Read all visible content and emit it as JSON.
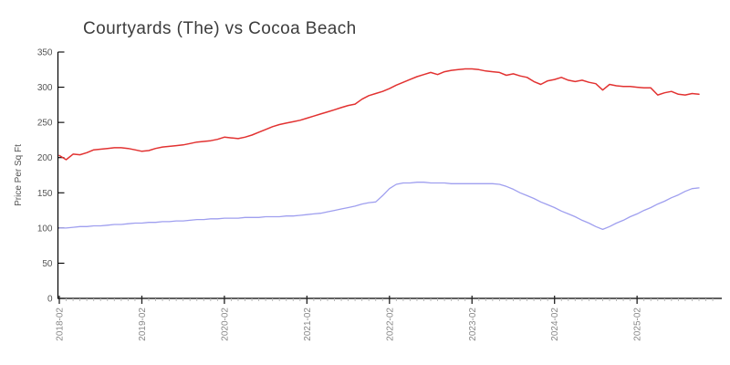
{
  "title": "Courtyards (The) vs Cocoa Beach",
  "chart_data": {
    "type": "line",
    "title": "Courtyards (The) vs Cocoa Beach",
    "xlabel": "",
    "ylabel": "Price Per Sq Ft",
    "ylim": [
      0,
      350
    ],
    "yticks": [
      0,
      50,
      100,
      150,
      200,
      250,
      300,
      350
    ],
    "x_major_tick_labels": [
      "2018-02",
      "2019-02",
      "2020-02",
      "2021-02",
      "2022-02",
      "2023-02",
      "2024-02",
      "2025-02"
    ],
    "grid": false,
    "legend_position": "none",
    "axis_color": "#000000",
    "y_tick_label_color": "#555555",
    "x_tick_label_color": "#888888",
    "title_color": "#3c3c3c",
    "x": [
      "2018-02",
      "2018-03",
      "2018-04",
      "2018-05",
      "2018-06",
      "2018-07",
      "2018-08",
      "2018-09",
      "2018-10",
      "2018-11",
      "2018-12",
      "2019-01",
      "2019-02",
      "2019-03",
      "2019-04",
      "2019-05",
      "2019-06",
      "2019-07",
      "2019-08",
      "2019-09",
      "2019-10",
      "2019-11",
      "2019-12",
      "2020-01",
      "2020-02",
      "2020-03",
      "2020-04",
      "2020-05",
      "2020-06",
      "2020-07",
      "2020-08",
      "2020-09",
      "2020-10",
      "2020-11",
      "2020-12",
      "2021-01",
      "2021-02",
      "2021-03",
      "2021-04",
      "2021-05",
      "2021-06",
      "2021-07",
      "2021-08",
      "2021-09",
      "2021-10",
      "2021-11",
      "2021-12",
      "2022-01",
      "2022-02",
      "2022-03",
      "2022-04",
      "2022-05",
      "2022-06",
      "2022-07",
      "2022-08",
      "2022-09",
      "2022-10",
      "2022-11",
      "2022-12",
      "2023-01",
      "2023-02",
      "2023-03",
      "2023-04",
      "2023-05",
      "2023-06",
      "2023-07",
      "2023-08",
      "2023-09",
      "2023-10",
      "2023-11",
      "2023-12",
      "2024-01",
      "2024-02",
      "2024-03",
      "2024-04",
      "2024-05",
      "2024-06",
      "2024-07",
      "2024-08",
      "2024-09",
      "2024-10",
      "2024-11",
      "2024-12",
      "2025-01",
      "2025-02",
      "2025-03",
      "2025-04",
      "2025-05",
      "2025-06",
      "2025-07",
      "2025-08",
      "2025-09",
      "2025-10",
      "2025-11"
    ],
    "series": [
      {
        "name": "Courtyards (The)",
        "color": "#e23231",
        "stroke_width": 1.5,
        "values": [
          203,
          197,
          205,
          204,
          207,
          211,
          212,
          213,
          214,
          214,
          213,
          211,
          209,
          210,
          213,
          215,
          216,
          217,
          218,
          220,
          222,
          223,
          224,
          226,
          229,
          228,
          227,
          229,
          232,
          236,
          240,
          244,
          247,
          249,
          251,
          253,
          256,
          259,
          262,
          265,
          268,
          271,
          274,
          276,
          283,
          288,
          291,
          294,
          298,
          303,
          307,
          311,
          315,
          318,
          321,
          318,
          322,
          324,
          325,
          326,
          326,
          325,
          323,
          322,
          321,
          317,
          319,
          316,
          314,
          308,
          304,
          309,
          311,
          314,
          310,
          308,
          310,
          307,
          305,
          296,
          304,
          302,
          301,
          301,
          300,
          299,
          299,
          289,
          292,
          294,
          290,
          289,
          291,
          290
        ]
      },
      {
        "name": "Cocoa Beach",
        "color": "#9f9fef",
        "stroke_width": 1.3,
        "values": [
          100,
          100,
          101,
          102,
          102,
          103,
          103,
          104,
          105,
          105,
          106,
          107,
          107,
          108,
          108,
          109,
          109,
          110,
          110,
          111,
          112,
          112,
          113,
          113,
          114,
          114,
          114,
          115,
          115,
          115,
          116,
          116,
          116,
          117,
          117,
          118,
          119,
          120,
          121,
          123,
          125,
          127,
          129,
          131,
          134,
          136,
          137,
          146,
          156,
          162,
          164,
          164,
          165,
          165,
          164,
          164,
          164,
          163,
          163,
          163,
          163,
          163,
          163,
          163,
          162,
          159,
          155,
          150,
          146,
          142,
          137,
          133,
          129,
          124,
          120,
          116,
          111,
          107,
          102,
          98,
          102,
          107,
          111,
          116,
          120,
          125,
          129,
          134,
          138,
          143,
          147,
          152,
          156,
          157
        ]
      }
    ]
  }
}
